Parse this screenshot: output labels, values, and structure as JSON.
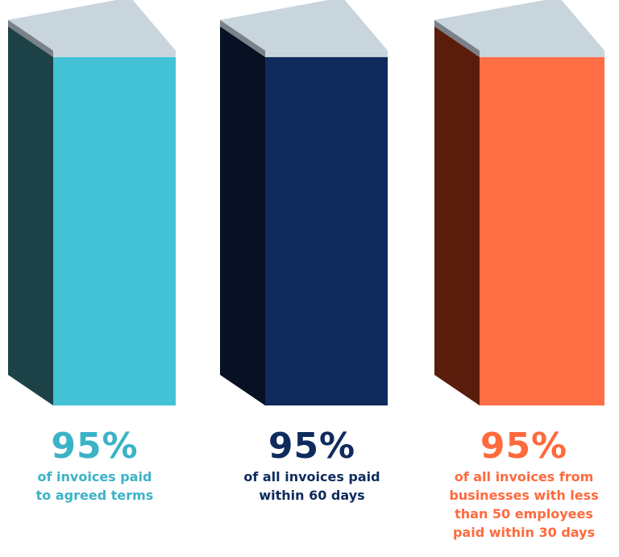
{
  "chart_data": {
    "type": "bar",
    "title": "",
    "categories": [
      "of invoices paid to agreed terms",
      "of all invoices paid within 60 days",
      "of all invoices from businesses with less than 50 employees paid within 30 days"
    ],
    "values": [
      95,
      95,
      95
    ],
    "value_labels": [
      "95%",
      "95%",
      "95%"
    ],
    "caption_lines": [
      [
        "of invoices paid",
        "to agreed terms"
      ],
      [
        "of all invoices paid",
        "within 60 days"
      ],
      [
        "of all invoices from",
        "businesses with less",
        "than 50 employees",
        "paid within 30 days"
      ]
    ],
    "ylim": [
      0,
      100
    ],
    "xlabel": "",
    "ylabel": "",
    "grid": false,
    "legend": "none"
  },
  "colors": {
    "bar_fronts": [
      "#43c2d6",
      "#0e2a5c",
      "#ff6e45"
    ],
    "bar_sides": [
      "#1c4248",
      "#081024",
      "#5a1d0c"
    ],
    "bar_labels": [
      "#3bb3c7",
      "#0f2b5d",
      "#ff6a3d"
    ],
    "top_light": "#c8d5dd",
    "top_dark": "#7a8189"
  }
}
